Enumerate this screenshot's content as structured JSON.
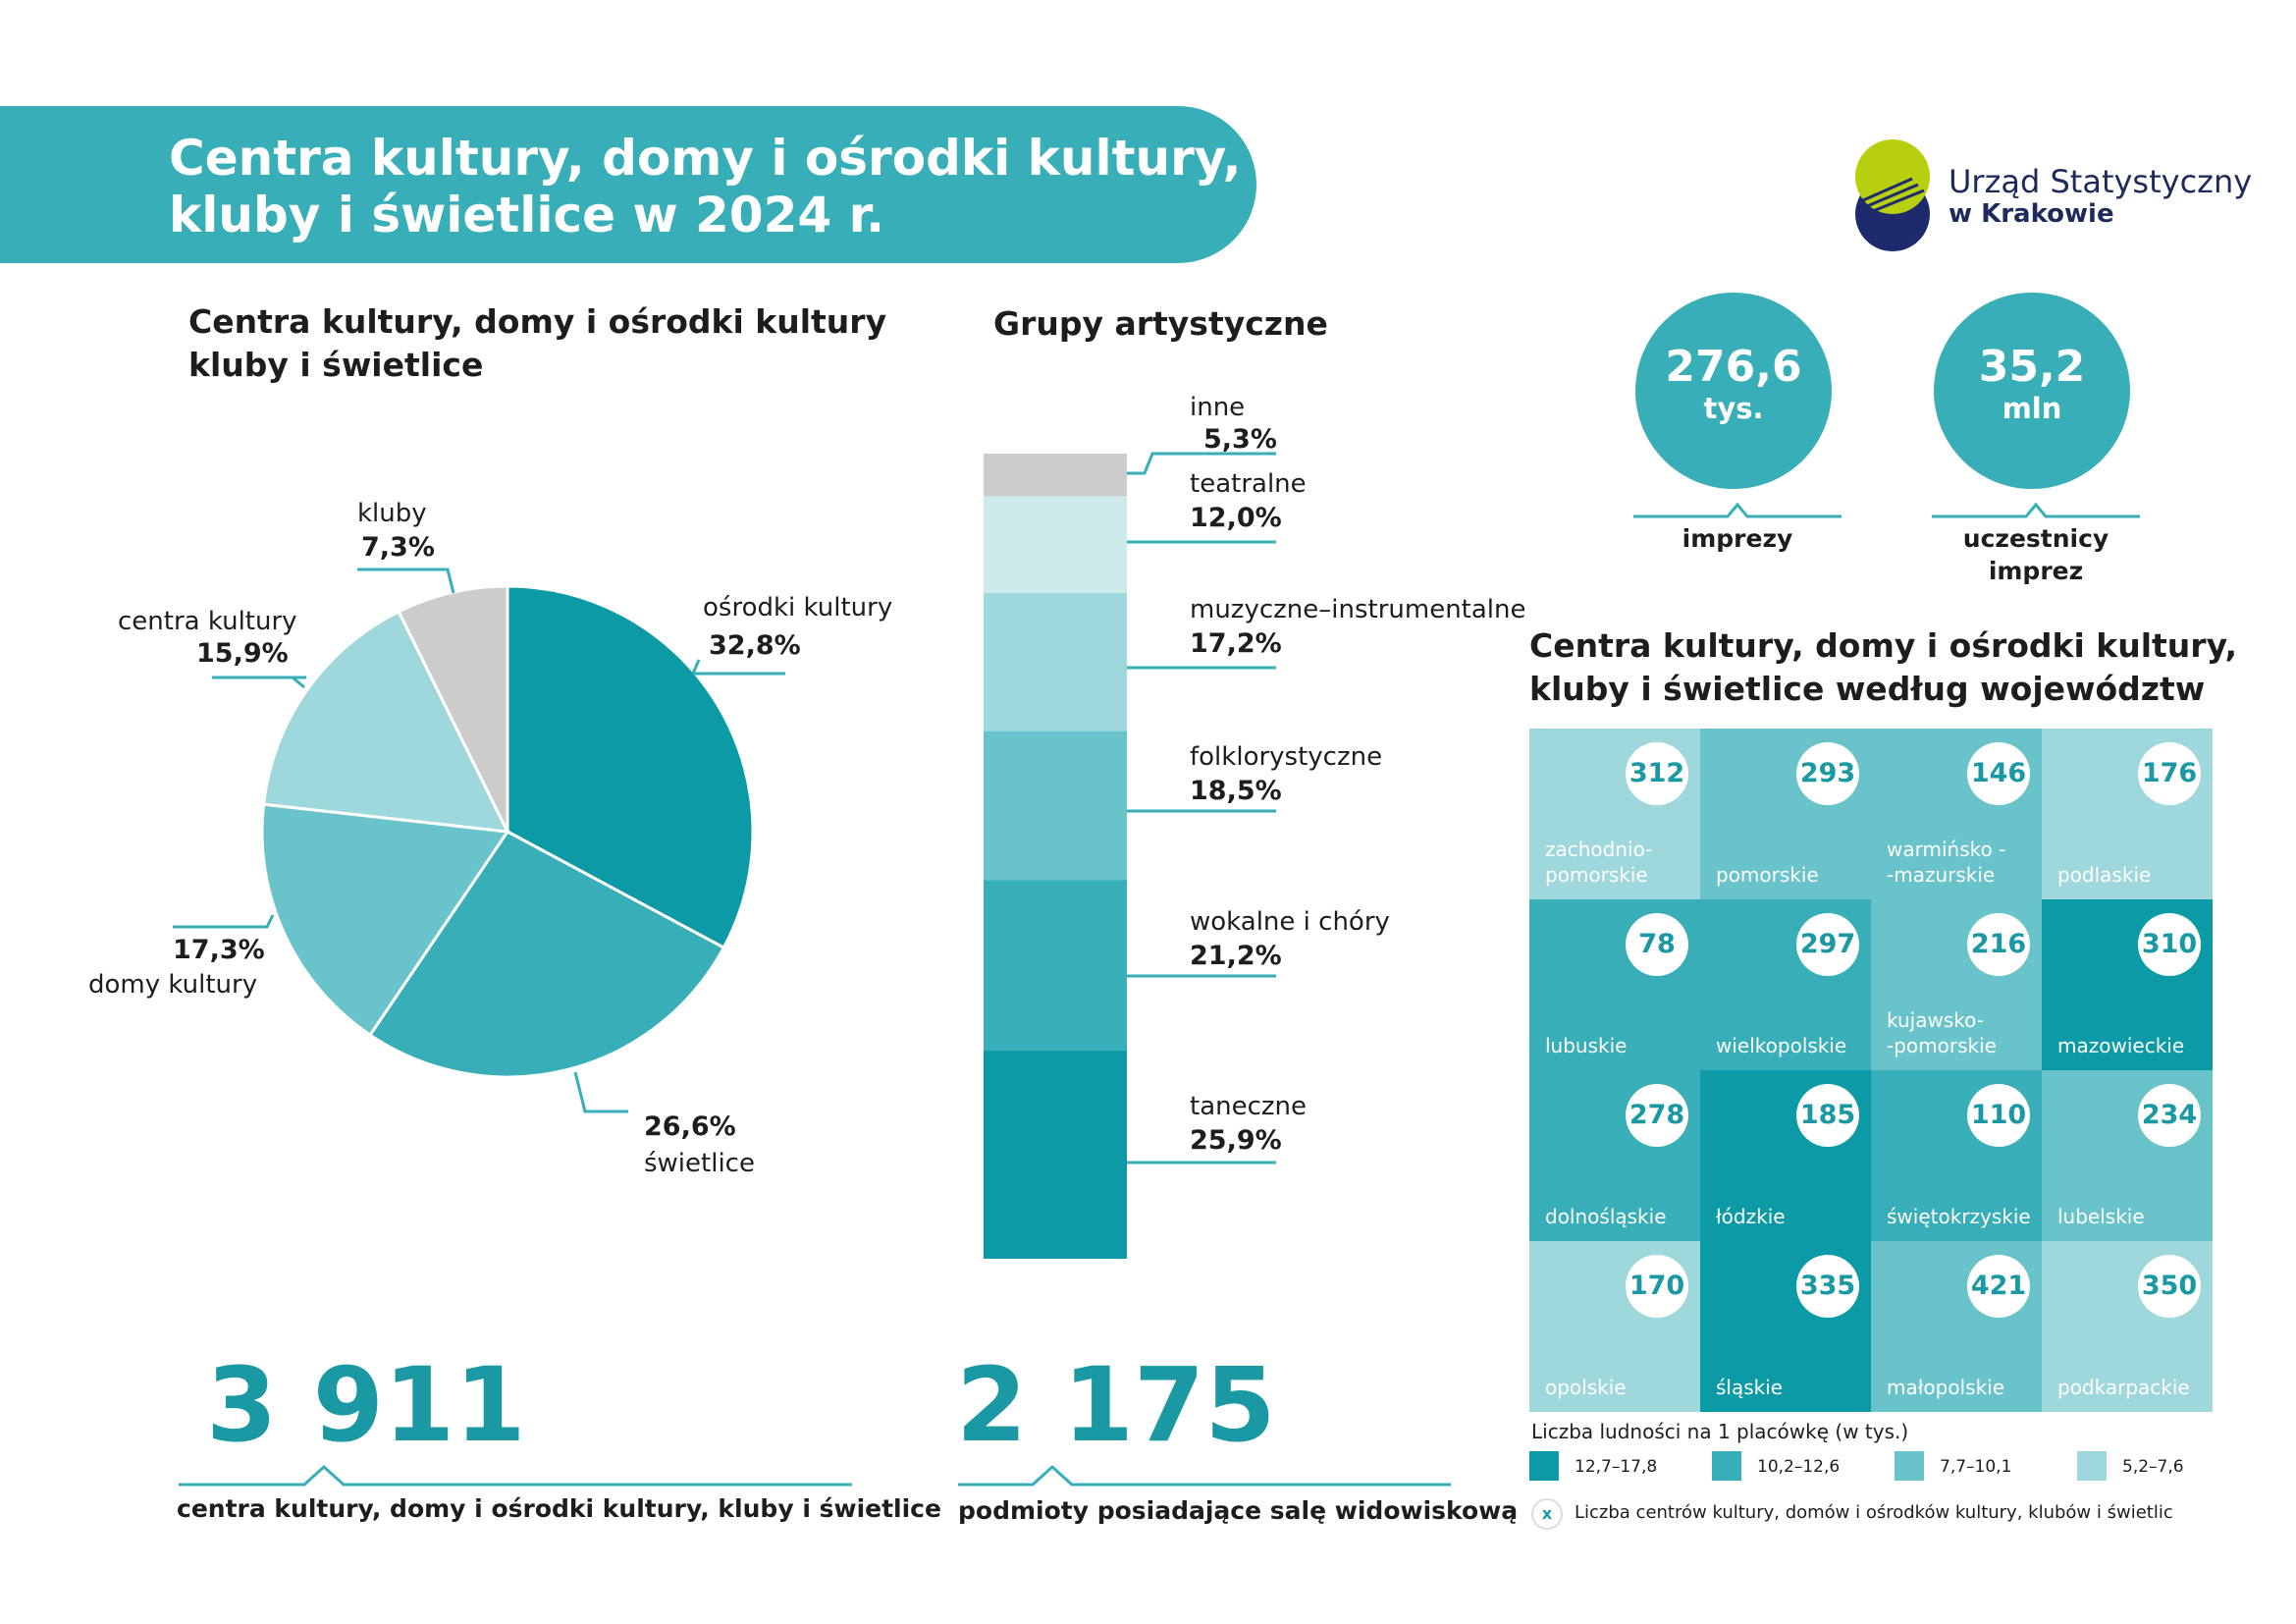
{
  "title": {
    "line1": "Centra kultury, domy i ośrodki kultury,",
    "line2": "kluby i świetlice w 2024 r."
  },
  "logo": {
    "line1": "Urząd Statystyczny",
    "line2": "w Krakowie"
  },
  "colors": {
    "dark": "#0b9aa6",
    "mid_dark": "#38aeb8",
    "mid": "#69c3ca",
    "light": "#9fd8dc",
    "very_light": "#cdebec",
    "grey": "#cccccc",
    "accent": "#1a98a3"
  },
  "pie": {
    "title_line1": "Centra  kultury, domy i ośrodki kultury",
    "title_line2": "kluby i świetlice",
    "labels": [
      {
        "name": "ośrodki kultury",
        "value": "32,8%"
      },
      {
        "name": "świetlice",
        "value": "26,6%"
      },
      {
        "name": "domy kultury",
        "value": "17,3%"
      },
      {
        "name": "centra kultury",
        "value": "15,9%"
      },
      {
        "name": "kluby",
        "value": "7,3%"
      }
    ]
  },
  "groups": {
    "title": "Grupy artystyczne",
    "labels": [
      {
        "name": "inne",
        "value": "5,3%"
      },
      {
        "name": "teatralne",
        "value": "12,0%"
      },
      {
        "name": "muzyczne–instrumentalne",
        "value": "17,2%"
      },
      {
        "name": "folklorystyczne",
        "value": "18,5%"
      },
      {
        "name": "wokalne i chóry",
        "value": "21,2%"
      },
      {
        "name": "taneczne",
        "value": "25,9%"
      }
    ]
  },
  "stats": {
    "events": {
      "number": "276,6",
      "unit": "tys.",
      "caption": "imprezy"
    },
    "participants": {
      "number": "35,2",
      "unit": "mln",
      "caption_line1": "uczestnicy",
      "caption_line2": "imprez"
    }
  },
  "totals": {
    "institutions": {
      "number": "3 911",
      "caption": "centra kultury, domy i ośrodki kultury, kluby i świetlice"
    },
    "venues": {
      "number": "2 175",
      "caption": "podmioty posiadające salę widowiskową"
    }
  },
  "map": {
    "title_line1": "Centra kultury, domy i ośrodki kultury,",
    "title_line2": "kluby i świetlice według województw",
    "cells": [
      {
        "value": "312",
        "l1": "zachodnio-",
        "l2": "pomorskie",
        "cls": 3
      },
      {
        "value": "293",
        "l1": "",
        "l2": "pomorskie",
        "cls": 2
      },
      {
        "value": "146",
        "l1": "warmińsko -",
        "l2": "-mazurskie",
        "cls": 2
      },
      {
        "value": "176",
        "l1": "",
        "l2": "podlaskie",
        "cls": 3
      },
      {
        "value": "78",
        "l1": "",
        "l2": "lubuskie",
        "cls": 1
      },
      {
        "value": "297",
        "l1": "",
        "l2": "wielkopolskie",
        "cls": 1
      },
      {
        "value": "216",
        "l1": "kujawsko-",
        "l2": "-pomorskie",
        "cls": 2
      },
      {
        "value": "310",
        "l1": "",
        "l2": "mazowieckie",
        "cls": 0
      },
      {
        "value": "278",
        "l1": "",
        "l2": "dolnośląskie",
        "cls": 1
      },
      {
        "value": "185",
        "l1": "",
        "l2": "łódzkie",
        "cls": 0
      },
      {
        "value": "110",
        "l1": "",
        "l2": "świętokrzyskie",
        "cls": 1
      },
      {
        "value": "234",
        "l1": "",
        "l2": "lubelskie",
        "cls": 2
      },
      {
        "value": "170",
        "l1": "",
        "l2": "opolskie",
        "cls": 3
      },
      {
        "value": "335",
        "l1": "",
        "l2": "śląskie",
        "cls": 0
      },
      {
        "value": "421",
        "l1": "",
        "l2": "małopolskie",
        "cls": 2
      },
      {
        "value": "350",
        "l1": "",
        "l2": "podkarpackie",
        "cls": 3
      }
    ],
    "legend_title": "Liczba ludności na 1 placówkę (w tys.)",
    "legend": [
      "12,7–17,8",
      "10,2–12,6",
      "7,7–10,1",
      "5,2–7,6"
    ],
    "legend_colors": [
      "#0b9aa6",
      "#38aeb8",
      "#69c3ca",
      "#9fd8dc"
    ],
    "note_symbol": "x",
    "note": "Liczba centrów kultury, domów i ośrodków kultury, klubów i świetlic"
  },
  "chart_data": [
    {
      "type": "pie",
      "title": "Centra  kultury, domy i ośrodki kultury kluby i świetlice",
      "categories": [
        "ośrodki kultury",
        "świetlice",
        "domy kultury",
        "centra kultury",
        "kluby"
      ],
      "values": [
        32.8,
        26.6,
        17.3,
        15.9,
        7.3
      ],
      "colors": [
        "#0b9aa6",
        "#38aeb8",
        "#69c3ca",
        "#9fd8dc",
        "#cccccc"
      ]
    },
    {
      "type": "bar",
      "title": "Grupy artystyczne",
      "categories": [
        "inne",
        "teatralne",
        "muzyczne–instrumentalne",
        "folklorystyczne",
        "wokalne i chóry",
        "taneczne"
      ],
      "values": [
        5.3,
        12.0,
        17.2,
        18.5,
        21.2,
        25.9
      ],
      "colors": [
        "#cccccc",
        "#cdebec",
        "#9fd8dc",
        "#69c3ca",
        "#38aeb8",
        "#0b9aa6"
      ]
    }
  ]
}
